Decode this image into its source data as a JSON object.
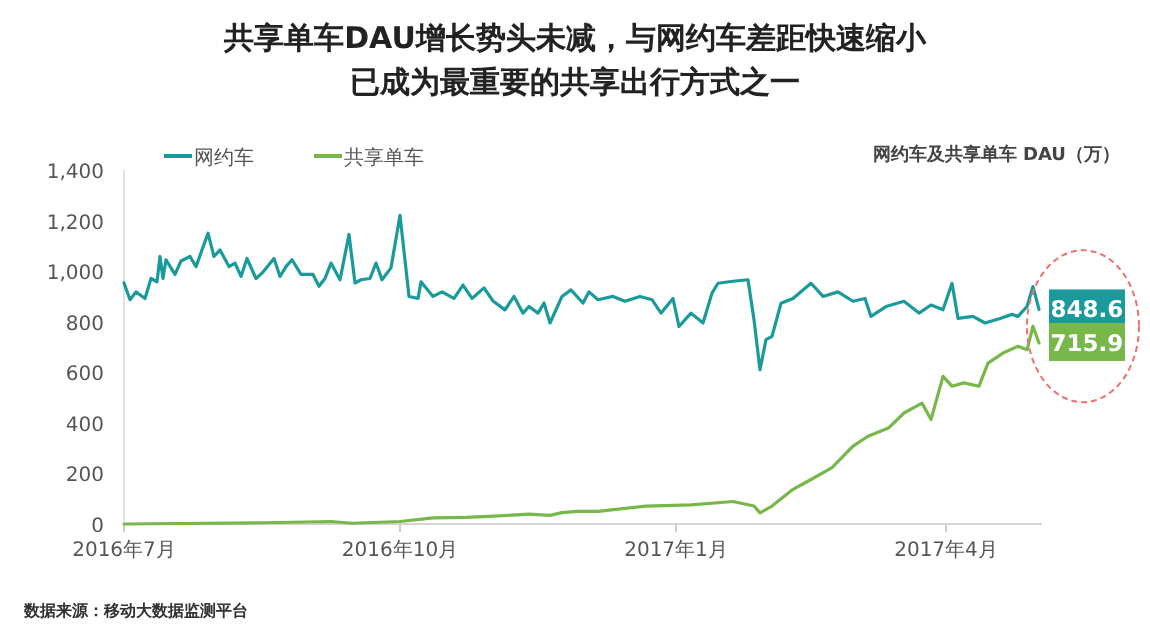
{
  "chart_data": {
    "type": "line",
    "title": "共享单车DAU增长势头未减，与网约车差距快速缩小",
    "subtitle": "已成为最重要的共享出行方式之一",
    "ylabel": "网约车及共享单车 DAU（万）",
    "xlim": [
      "2016-07-01",
      "2017-05-03"
    ],
    "xticks": [
      {
        "value": "2016-07-01",
        "label": "2016年7月"
      },
      {
        "value": "2016-10-01",
        "label": "2016年10月"
      },
      {
        "value": "2017-01-01",
        "label": "2017年1月"
      },
      {
        "value": "2017-04-01",
        "label": "2017年4月"
      }
    ],
    "ylim": [
      0,
      1400
    ],
    "yticks": [
      0,
      200,
      400,
      600,
      800,
      {
        "value": 1000,
        "label": "1,000"
      },
      {
        "value": 1200,
        "label": "1,200"
      },
      {
        "value": 1400,
        "label": "1,400"
      }
    ],
    "legend": "top left",
    "grid": false,
    "series": [
      {
        "name": "网约车",
        "color": "#1a9a9a",
        "x": [
          "2016-07-01",
          "2016-07-03",
          "2016-07-05",
          "2016-07-08",
          "2016-07-10",
          "2016-07-12",
          "2016-07-13",
          "2016-07-14",
          "2016-07-15",
          "2016-07-18",
          "2016-07-20",
          "2016-07-23",
          "2016-07-25",
          "2016-07-29",
          "2016-07-31",
          "2016-08-02",
          "2016-08-05",
          "2016-08-07",
          "2016-08-09",
          "2016-08-11",
          "2016-08-14",
          "2016-08-16",
          "2016-08-20",
          "2016-08-22",
          "2016-08-24",
          "2016-08-26",
          "2016-08-29",
          "2016-09-02",
          "2016-09-04",
          "2016-09-06",
          "2016-09-08",
          "2016-09-11",
          "2016-09-14",
          "2016-09-16",
          "2016-09-18",
          "2016-09-21",
          "2016-09-23",
          "2016-09-25",
          "2016-09-28",
          "2016-10-01",
          "2016-10-04",
          "2016-10-07",
          "2016-10-08",
          "2016-10-12",
          "2016-10-15",
          "2016-10-19",
          "2016-10-22",
          "2016-10-25",
          "2016-10-29",
          "2016-11-01",
          "2016-11-05",
          "2016-11-08",
          "2016-11-11",
          "2016-11-13",
          "2016-11-16",
          "2016-11-18",
          "2016-11-20",
          "2016-11-24",
          "2016-11-27",
          "2016-12-01",
          "2016-12-03",
          "2016-12-06",
          "2016-12-11",
          "2016-12-15",
          "2016-12-20",
          "2016-12-24",
          "2016-12-27",
          "2016-12-31",
          "2017-01-02",
          "2017-01-06",
          "2017-01-10",
          "2017-01-13",
          "2017-01-15",
          "2017-01-20",
          "2017-01-25",
          "2017-01-27",
          "2017-01-29",
          "2017-01-31",
          "2017-02-02",
          "2017-02-05",
          "2017-02-09",
          "2017-02-15",
          "2017-02-19",
          "2017-02-24",
          "2017-03-01",
          "2017-03-05",
          "2017-03-07",
          "2017-03-12",
          "2017-03-18",
          "2017-03-23",
          "2017-03-27",
          "2017-03-31",
          "2017-04-03",
          "2017-04-05",
          "2017-04-10",
          "2017-04-14",
          "2017-04-19",
          "2017-04-23",
          "2017-04-25",
          "2017-04-28",
          "2017-04-30",
          "2017-05-02"
        ],
        "values": [
          953,
          887,
          918,
          892,
          971,
          958,
          1058,
          971,
          1045,
          987,
          1040,
          1058,
          1018,
          1150,
          1058,
          1084,
          1018,
          1032,
          979,
          1050,
          971,
          992,
          1050,
          979,
          1018,
          1045,
          987,
          987,
          940,
          971,
          1032,
          966,
          1145,
          953,
          966,
          971,
          1032,
          966,
          1013,
          1221,
          900,
          892,
          958,
          900,
          918,
          892,
          945,
          892,
          934,
          882,
          847,
          900,
          834,
          860,
          834,
          874,
          795,
          900,
          926,
          874,
          918,
          887,
          900,
          881,
          900,
          887,
          834,
          892,
          781,
          834,
          795,
          913,
          952,
          960,
          966,
          808,
          610,
          729,
          742,
          873,
          892,
          952,
          900,
          918,
          881,
          892,
          821,
          860,
          881,
          834,
          866,
          847,
          952,
          813,
          821,
          795,
          813,
          829,
          821,
          860,
          939,
          848.6
        ]
      },
      {
        "name": "共享单车",
        "color": "#78b84a",
        "x": [
          "2016-07-01",
          "2016-08-17",
          "2016-09-08",
          "2016-09-15",
          "2016-10-01",
          "2016-10-12",
          "2016-10-23",
          "2016-11-03",
          "2016-11-13",
          "2016-11-20",
          "2016-11-24",
          "2016-11-29",
          "2016-12-06",
          "2016-12-22",
          "2017-01-06",
          "2017-01-20",
          "2017-01-27",
          "2017-01-29",
          "2017-02-02",
          "2017-02-09",
          "2017-02-15",
          "2017-02-22",
          "2017-03-01",
          "2017-03-06",
          "2017-03-13",
          "2017-03-18",
          "2017-03-24",
          "2017-03-27",
          "2017-03-31",
          "2017-04-03",
          "2017-04-07",
          "2017-04-12",
          "2017-04-15",
          "2017-04-20",
          "2017-04-25",
          "2017-04-28",
          "2017-04-30",
          "2017-05-02"
        ],
        "values": [
          0,
          5,
          10,
          3,
          10,
          24,
          26,
          32,
          39,
          34,
          45,
          50,
          50,
          71,
          76,
          89,
          71,
          44,
          71,
          137,
          176,
          223,
          308,
          347,
          381,
          439,
          478,
          413,
          584,
          545,
          558,
          545,
          636,
          676,
          703,
          689,
          782,
          715.9
        ]
      }
    ],
    "annotations": [
      {
        "text": "848.6",
        "x": "2017-05-02",
        "y": 848.6
      },
      {
        "text": "715.9",
        "x": "2017-05-02",
        "y": 715.9
      },
      "数据来源：移动大数据监测平台"
    ]
  }
}
